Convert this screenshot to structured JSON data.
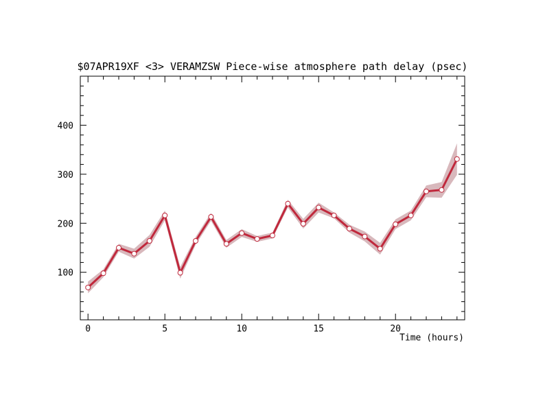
{
  "chart_data": {
    "type": "line",
    "title": "$07APR19XF <3>  VERAMZSW  Piece-wise atmosphere path delay (psec)",
    "xlabel": "Time (hours)",
    "ylabel": "",
    "xlim": [
      -0.5,
      24.5
    ],
    "ylim": [
      3,
      500
    ],
    "x_ticks": [
      0,
      5,
      10,
      15,
      20
    ],
    "y_ticks": [
      100,
      200,
      300,
      400
    ],
    "grid": false,
    "legend": "none",
    "line_color": "#c0283c",
    "band_color": "#d8b8bc",
    "series": [
      {
        "x": [
          0,
          1,
          2,
          3,
          4,
          5,
          6,
          7,
          8,
          9,
          10,
          11,
          12,
          13,
          14,
          15,
          16,
          17,
          18,
          19,
          20,
          21,
          22,
          23,
          24
        ],
        "y": [
          69,
          98,
          150,
          138,
          164,
          216,
          99,
          164,
          213,
          158,
          180,
          168,
          175,
          240,
          199,
          232,
          216,
          189,
          173,
          148,
          198,
          216,
          265,
          268,
          331
        ],
        "err": [
          12,
          8,
          8,
          10,
          12,
          10,
          12,
          8,
          8,
          8,
          8,
          6,
          6,
          8,
          10,
          10,
          6,
          8,
          10,
          12,
          10,
          10,
          12,
          16,
          32
        ]
      }
    ]
  }
}
